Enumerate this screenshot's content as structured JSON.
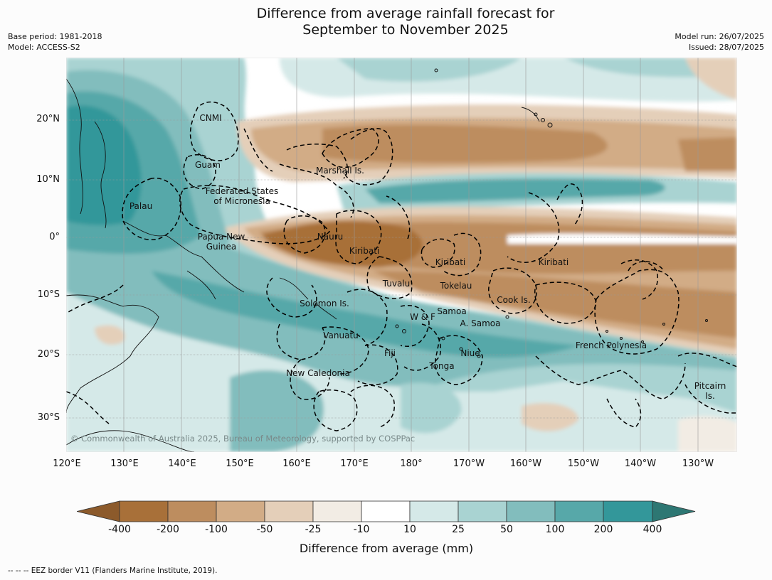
{
  "title_line1": "Difference from average rainfall forecast for",
  "title_line2": "September to November 2025",
  "meta_left": [
    "Base period: 1981-2018",
    "Model: ACCESS-S2"
  ],
  "meta_right": [
    "Model run: 26/07/2025",
    "Issued: 28/07/2025"
  ],
  "lat_ticks": [
    "20°N",
    "10°N",
    "0°",
    "10°S",
    "20°S",
    "30°S"
  ],
  "lon_ticks": [
    "120°E",
    "130°E",
    "140°E",
    "150°E",
    "160°E",
    "170°E",
    "180°",
    "170°W",
    "160°W",
    "150°W",
    "140°W",
    "130°W"
  ],
  "places": [
    {
      "label": "CNMI"
    },
    {
      "label": "Guam"
    },
    {
      "label": "Marshall Is."
    },
    {
      "label": "Federated States\nof Micronesia"
    },
    {
      "label": "Palau"
    },
    {
      "label": "Papua New\nGuinea"
    },
    {
      "label": "Nauru"
    },
    {
      "label": "Kiribati"
    },
    {
      "label": "Kiribati"
    },
    {
      "label": "Kiribati"
    },
    {
      "label": "Tuvalu"
    },
    {
      "label": "Tokelau"
    },
    {
      "label": "Cook Is."
    },
    {
      "label": "Solomon Is."
    },
    {
      "label": "Samoa"
    },
    {
      "label": "W & F"
    },
    {
      "label": "A. Samoa"
    },
    {
      "label": "Vanuatu"
    },
    {
      "label": "Fiji"
    },
    {
      "label": "Niue"
    },
    {
      "label": "Tonga"
    },
    {
      "label": "French Polynesia"
    },
    {
      "label": "New Caledonia"
    },
    {
      "label": "Pitcairn\nIs."
    }
  ],
  "copyright": "© Commonwealth of Australia 2025, Bureau of Meteorology, supported by COSPPac",
  "colorbar": {
    "label": "Difference from average (mm)",
    "ticks": [
      "-400",
      "-200",
      "-100",
      "-50",
      "-25",
      "-10",
      "10",
      "25",
      "50",
      "100",
      "200",
      "400"
    ],
    "colors": [
      "#8c5a2b",
      "#a87039",
      "#bd8d5f",
      "#d2ac86",
      "#e4cfb9",
      "#f2ece4",
      "#ffffff",
      "#d5e9e8",
      "#a9d3d2",
      "#82bdbd",
      "#57a8a9",
      "#33979a",
      "#2d7773"
    ]
  },
  "footnote": "-- -- -- EEZ border V11 (Flanders Marine Institute, 2019).",
  "colors": {
    "brown_strong": "#a87039",
    "brown": "#bd8d5f",
    "brown_mid": "#d2ac86",
    "brown_light": "#e4cfb9",
    "brown_pale": "#f2ece4",
    "white": "#ffffff",
    "teal_pale": "#d5e9e8",
    "teal_light": "#a9d3d2",
    "teal_mid": "#82bdbd",
    "teal": "#57a8a9",
    "teal_strong": "#33979a"
  }
}
